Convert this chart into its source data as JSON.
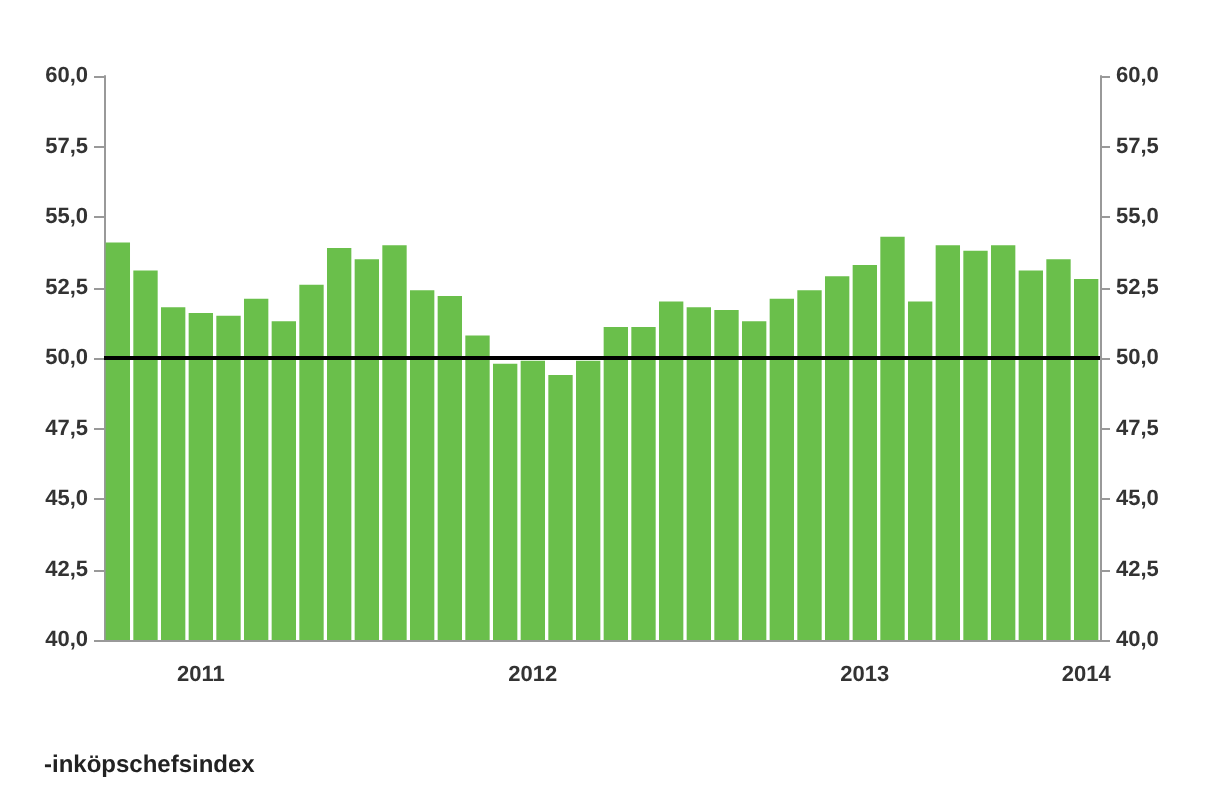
{
  "chart_data": {
    "type": "bar",
    "categories": [
      null,
      null,
      null,
      "2011",
      null,
      null,
      null,
      null,
      null,
      null,
      null,
      null,
      null,
      null,
      null,
      "2012",
      null,
      null,
      null,
      null,
      null,
      null,
      null,
      null,
      null,
      null,
      null,
      "2013",
      null,
      null,
      null,
      null,
      null,
      null,
      null,
      "2014"
    ],
    "values": [
      54.1,
      53.1,
      51.8,
      51.6,
      51.5,
      52.1,
      51.3,
      52.6,
      53.9,
      53.5,
      54.0,
      52.4,
      52.2,
      50.8,
      49.8,
      49.9,
      49.4,
      49.9,
      51.1,
      51.1,
      52.0,
      51.8,
      51.7,
      51.3,
      52.1,
      52.4,
      52.9,
      53.3,
      54.3,
      52.0,
      54.0,
      53.8,
      54.0,
      53.1,
      53.5,
      52.8
    ],
    "color": "#6abf4b",
    "ylim": [
      40,
      60
    ],
    "yticks": [
      {
        "value": 40,
        "label": "40,0"
      },
      {
        "value": 42.5,
        "label": "42,5"
      },
      {
        "value": 45,
        "label": "45,0"
      },
      {
        "value": 47.5,
        "label": "47,5"
      },
      {
        "value": 50,
        "label": "50,0"
      },
      {
        "value": 52.5,
        "label": "52,5"
      },
      {
        "value": 55,
        "label": "55,0"
      },
      {
        "value": 57.5,
        "label": "57,5"
      },
      {
        "value": 60,
        "label": "60,0"
      }
    ],
    "y2lim": [
      40,
      60
    ],
    "y2ticks": [
      {
        "value": 40,
        "label": "40,0"
      },
      {
        "value": 42.5,
        "label": "42,5"
      },
      {
        "value": 45,
        "label": "45,0"
      },
      {
        "value": 47.5,
        "label": "47,5"
      },
      {
        "value": 50,
        "label": "50,0"
      },
      {
        "value": 52.5,
        "label": "52,5"
      },
      {
        "value": 55,
        "label": "55,0"
      },
      {
        "value": 57.5,
        "label": "57,5"
      },
      {
        "value": 60,
        "label": "60,0"
      }
    ],
    "ref_lines": [
      {
        "axis": "y",
        "value": 50,
        "color": "#000000"
      }
    ],
    "annotations": [
      "-inköpschefsindex"
    ],
    "grid": false
  }
}
